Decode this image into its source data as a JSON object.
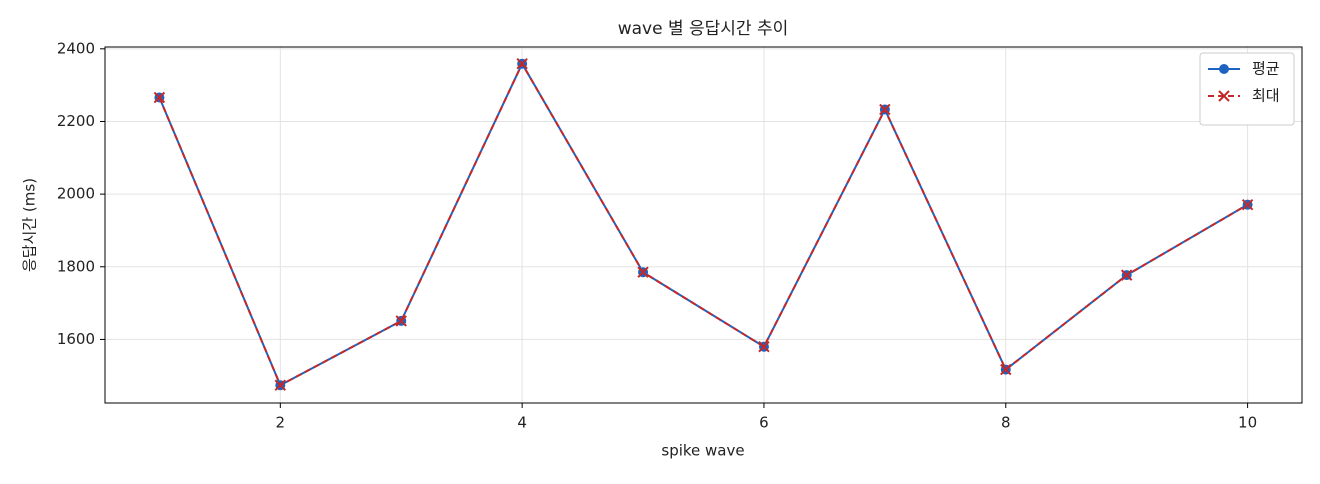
{
  "chart_data": {
    "type": "line",
    "title": "wave 별 응답시간 추이",
    "x_label": "spike wave",
    "y_label": "응답시간 (ms)",
    "x": [
      1,
      2,
      3,
      4,
      5,
      6,
      7,
      8,
      9,
      10
    ],
    "series": [
      {
        "name": "평균",
        "color": "#1f63c0",
        "line_style": "solid",
        "marker": "circle",
        "values": [
          2266,
          1474,
          1651,
          2359,
          1785,
          1580,
          2233,
          1517,
          1777,
          1971
        ]
      },
      {
        "name": "최대",
        "color": "#c62828",
        "line_style": "dashed",
        "marker": "x",
        "values": [
          2266,
          1474,
          1651,
          2359,
          1785,
          1580,
          2233,
          1517,
          1777,
          1971
        ]
      }
    ],
    "xlim": [
      0.55,
      10.45
    ],
    "xticks": [
      2,
      4,
      6,
      8,
      10
    ],
    "ylim": [
      1425,
      2405
    ],
    "yticks": [
      1600,
      1800,
      2000,
      2200,
      2400
    ],
    "grid": true,
    "legend": "upper right"
  }
}
